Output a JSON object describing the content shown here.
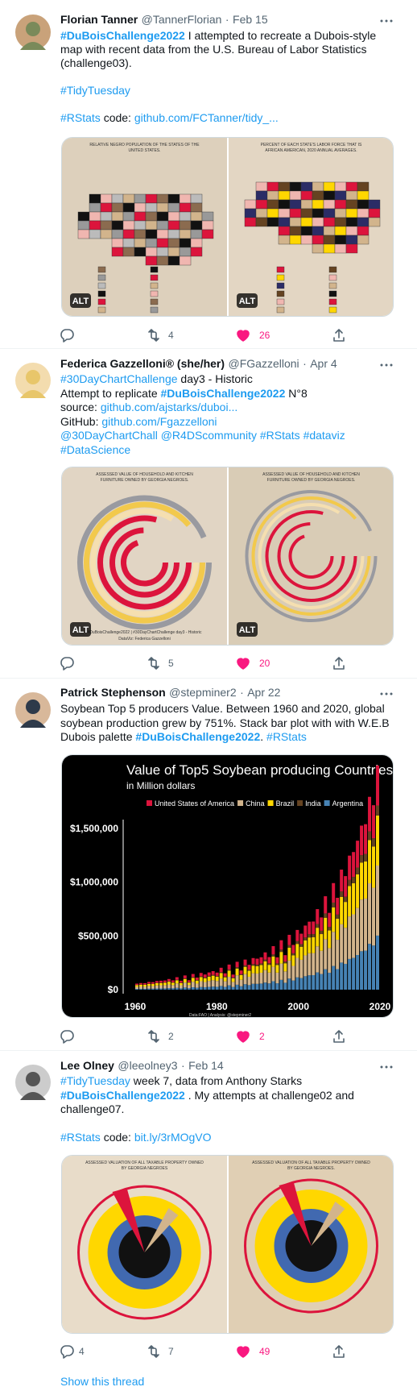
{
  "separator": "·",
  "show_thread": "Show this thread",
  "tweets": [
    {
      "name": "Florian Tanner",
      "handle": "@TannerFlorian",
      "date": "Feb 15",
      "lines": [
        [
          {
            "text": "#DuBoisChallenge2022",
            "style": "tag"
          },
          {
            "text": " I attempted to recreate a Dubois-style"
          }
        ],
        [
          {
            "text": "map with recent data from the U.S. Bureau of Labor Statistics"
          }
        ],
        [
          {
            "text": "(challenge03)."
          }
        ],
        [],
        [
          {
            "text": "#TidyTuesday",
            "style": "link"
          }
        ],
        [],
        [
          {
            "text": "#RStats",
            "style": "link"
          },
          {
            "text": " code: "
          },
          {
            "text": "github.com/FCTanner/tidy_...",
            "style": "link"
          }
        ]
      ],
      "media": [
        {
          "title": "RELATIVE NEGRO POPULATION OF THE STATES OF THE UNITED STATES.",
          "alt": "ALT"
        },
        {
          "title": "PERCENT OF EACH STATE'S LABOR FORCE THAT IS AFRICAN AMERICAN, 2020 ANNUAL AVERAGES.",
          "alt": "ALT"
        }
      ],
      "retweets": 4,
      "likes": 26
    },
    {
      "name": "Federica Gazzelloni® (she/her)",
      "handle": "@FGazzelloni",
      "date": "Apr 4",
      "lines": [
        [
          {
            "text": "#30DayChartChallenge",
            "style": "link"
          },
          {
            "text": " day3 - Historic"
          }
        ],
        [
          {
            "text": "Attempt to replicate "
          },
          {
            "text": "#DuBoisChallenge2022",
            "style": "tag"
          },
          {
            "text": " N°8"
          }
        ],
        [
          {
            "text": "source: "
          },
          {
            "text": "github.com/ajstarks/duboi...",
            "style": "link"
          }
        ],
        [
          {
            "text": "GitHub: "
          },
          {
            "text": "github.com/Fgazzelloni",
            "style": "link"
          }
        ],
        [
          {
            "text": "@30DayChartChall",
            "style": "link"
          },
          {
            "text": " "
          },
          {
            "text": "@R4DScommunity",
            "style": "link"
          },
          {
            "text": " "
          },
          {
            "text": "#RStats",
            "style": "link"
          },
          {
            "text": " "
          },
          {
            "text": "#dataviz",
            "style": "link"
          }
        ],
        [
          {
            "text": "#DataScience",
            "style": "link"
          }
        ]
      ],
      "media": [
        {
          "title": "ASSESSED VALUE OF HOUSEHOLD AND KITCHEN FURNITURE OWNED BY GEORGIA NEGROES.",
          "caption": "#DuBoisChallenge2022 | #30DayChartChallenge day3 - Historic",
          "credit": "DataViz: Federica Gazzelloni",
          "alt": "ALT"
        },
        {
          "title": "ASSESSED VALUE OF HOUSEHOLD AND KITCHEN FURNITURE OWNED BY GEORGIA NEGROES.",
          "alt": "ALT"
        }
      ],
      "retweets": 5,
      "likes": 20
    },
    {
      "name": "Patrick Stephenson",
      "handle": "@stepminer2",
      "date": "Apr 22",
      "lines": [
        [
          {
            "text": "Soybean Top 5 producers Value. Between 1960 and 2020, global"
          }
        ],
        [
          {
            "text": "soybean production grew by 751%. Stack bar plot with with W.E.B"
          }
        ],
        [
          {
            "text": "Dubois palette "
          },
          {
            "text": "#DuBoisChallenge2022",
            "style": "tag"
          },
          {
            "text": ". "
          },
          {
            "text": "#RStats",
            "style": "link"
          }
        ]
      ],
      "chart": {
        "title": "Value of Top5 Soybean producing Countries",
        "subtitle": "in Million dollars",
        "legend": [
          {
            "name": "United States of America",
            "color": "#dc143c"
          },
          {
            "name": "China",
            "color": "#d2b48c"
          },
          {
            "name": "Brazil",
            "color": "#ffd700"
          },
          {
            "name": "India",
            "color": "#654321"
          },
          {
            "name": "Argentina",
            "color": "#4682b4"
          }
        ],
        "yticks": [
          "$1,500,000",
          "$1,000,000",
          "$500,000",
          "$0"
        ],
        "xticks": [
          1960,
          1980,
          2000,
          2020
        ],
        "caption": "Data:FAO | Analysis: @stepminer2"
      },
      "retweets": 2,
      "likes": 2
    },
    {
      "name": "Lee Olney",
      "handle": "@leeolney3",
      "date": "Feb 14",
      "lines": [
        [
          {
            "text": "#TidyTuesday",
            "style": "link"
          },
          {
            "text": " week 7, data from Anthony Starks"
          }
        ],
        [
          {
            "text": "#DuBoisChallenge2022",
            "style": "tag"
          },
          {
            "text": " . My attempts at challenge02 and"
          }
        ],
        [
          {
            "text": "challenge07."
          }
        ],
        [],
        [
          {
            "text": "#RStats",
            "style": "link"
          },
          {
            "text": " code: "
          },
          {
            "text": "bit.ly/3rMOgVO",
            "style": "link"
          }
        ]
      ],
      "media": [
        {
          "title": "ASSESSED VALUATION OF ALL TAXABLE PROPERTY OWNED BY GEORGIA NEGROES"
        },
        {
          "title": "ASSESSED VALUATION OF ALL TAXABLE PROPERTY OWNED BY GEORGIA NEGROES."
        }
      ],
      "replies": 4,
      "retweets": 7,
      "likes": 49
    }
  ]
}
